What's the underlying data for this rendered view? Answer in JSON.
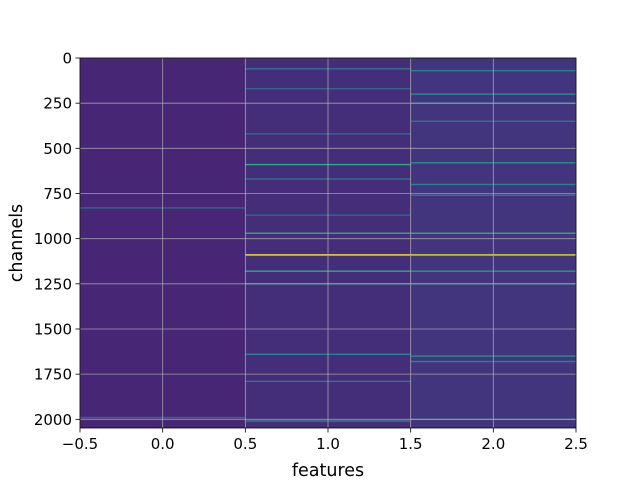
{
  "chart_data": {
    "type": "heatmap",
    "title": "",
    "xlabel": "features",
    "ylabel": "channels",
    "xlim": [
      -0.5,
      2.5
    ],
    "ylim": [
      2048,
      0
    ],
    "y_axis_inverted": true,
    "grid": true,
    "colormap": "viridis",
    "xticks": [
      -0.5,
      0.0,
      0.5,
      1.0,
      1.5,
      2.0,
      2.5
    ],
    "xtick_labels": [
      "−0.5",
      "0.0",
      "0.5",
      "1.0",
      "1.5",
      "2.0",
      "2.5"
    ],
    "yticks": [
      0,
      250,
      500,
      750,
      1000,
      1250,
      1500,
      1750,
      2000
    ],
    "ytick_labels": [
      "0",
      "250",
      "500",
      "750",
      "1000",
      "1250",
      "1500",
      "1750",
      "2000"
    ],
    "columns": [
      {
        "feature": 0,
        "base_level": 0.1,
        "highlights": [
          {
            "channel": 830,
            "value": 0.3
          },
          {
            "channel": 1990,
            "value": 0.3
          }
        ]
      },
      {
        "feature": 1,
        "base_level": 0.12,
        "highlights": [
          {
            "channel": 60,
            "value": 0.35
          },
          {
            "channel": 170,
            "value": 0.3
          },
          {
            "channel": 420,
            "value": 0.3
          },
          {
            "channel": 590,
            "value": 0.55
          },
          {
            "channel": 670,
            "value": 0.35
          },
          {
            "channel": 870,
            "value": 0.3
          },
          {
            "channel": 970,
            "value": 0.55
          },
          {
            "channel": 1090,
            "value": 1.0
          },
          {
            "channel": 1180,
            "value": 0.55
          },
          {
            "channel": 1250,
            "value": 0.45
          },
          {
            "channel": 1640,
            "value": 0.4
          },
          {
            "channel": 1790,
            "value": 0.35
          },
          {
            "channel": 2010,
            "value": 0.4
          }
        ]
      },
      {
        "feature": 2,
        "base_level": 0.14,
        "highlights": [
          {
            "channel": 70,
            "value": 0.4
          },
          {
            "channel": 200,
            "value": 0.45
          },
          {
            "channel": 250,
            "value": 0.4
          },
          {
            "channel": 350,
            "value": 0.35
          },
          {
            "channel": 580,
            "value": 0.45
          },
          {
            "channel": 700,
            "value": 0.4
          },
          {
            "channel": 760,
            "value": 0.35
          },
          {
            "channel": 970,
            "value": 0.55
          },
          {
            "channel": 1090,
            "value": 0.9
          },
          {
            "channel": 1180,
            "value": 0.5
          },
          {
            "channel": 1250,
            "value": 0.4
          },
          {
            "channel": 1650,
            "value": 0.45
          },
          {
            "channel": 1680,
            "value": 0.4
          },
          {
            "channel": 2000,
            "value": 0.4
          }
        ]
      }
    ]
  }
}
